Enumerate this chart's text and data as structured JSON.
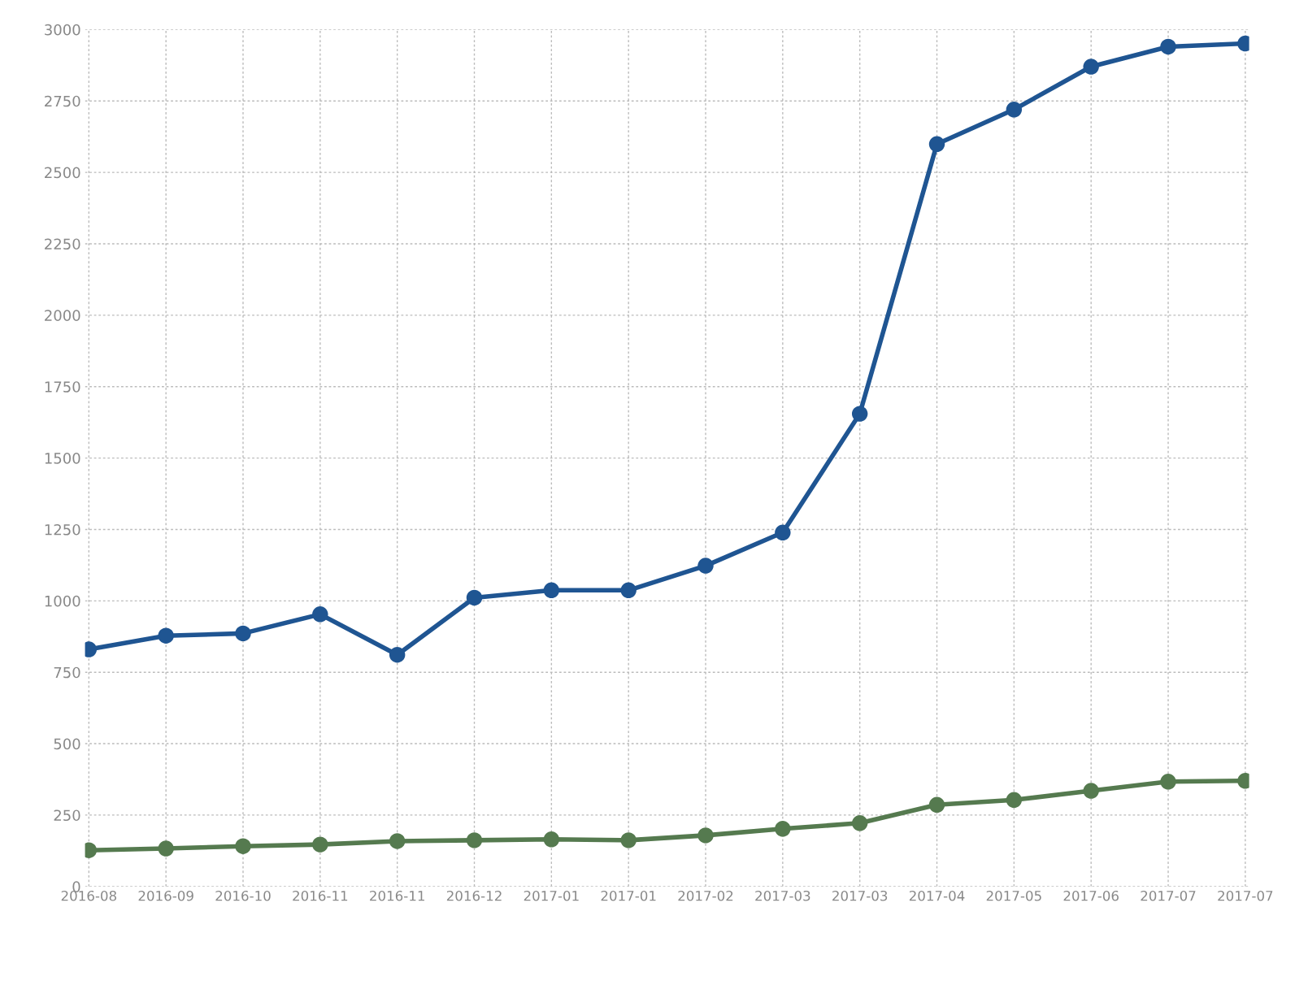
{
  "chart_data": {
    "type": "line",
    "categories": [
      "2016-08",
      "2016-09",
      "2016-10",
      "2016-11",
      "2016-11",
      "2016-12",
      "2017-01",
      "2017-01",
      "2017-02",
      "2017-03",
      "2017-03",
      "2017-04",
      "2017-05",
      "2017-06",
      "2017-07",
      "2017-07"
    ],
    "series": [
      {
        "color": "#1f5592",
        "values": [
          830,
          878,
          886,
          953,
          811,
          1011,
          1037,
          1037,
          1123,
          1239,
          1655,
          2599,
          2720,
          2870,
          2940,
          2951
        ]
      },
      {
        "color": "#557a4f",
        "values": [
          127,
          133,
          141,
          147,
          159,
          162,
          165,
          162,
          179,
          202,
          222,
          286,
          303,
          335,
          367,
          370
        ]
      }
    ],
    "ylim": [
      0,
      3000
    ],
    "yticks": [
      0,
      250,
      500,
      750,
      1000,
      1250,
      1500,
      1750,
      2000,
      2250,
      2500,
      2750,
      3000
    ],
    "grid": true,
    "marker": "circle",
    "line_style": "solid"
  }
}
